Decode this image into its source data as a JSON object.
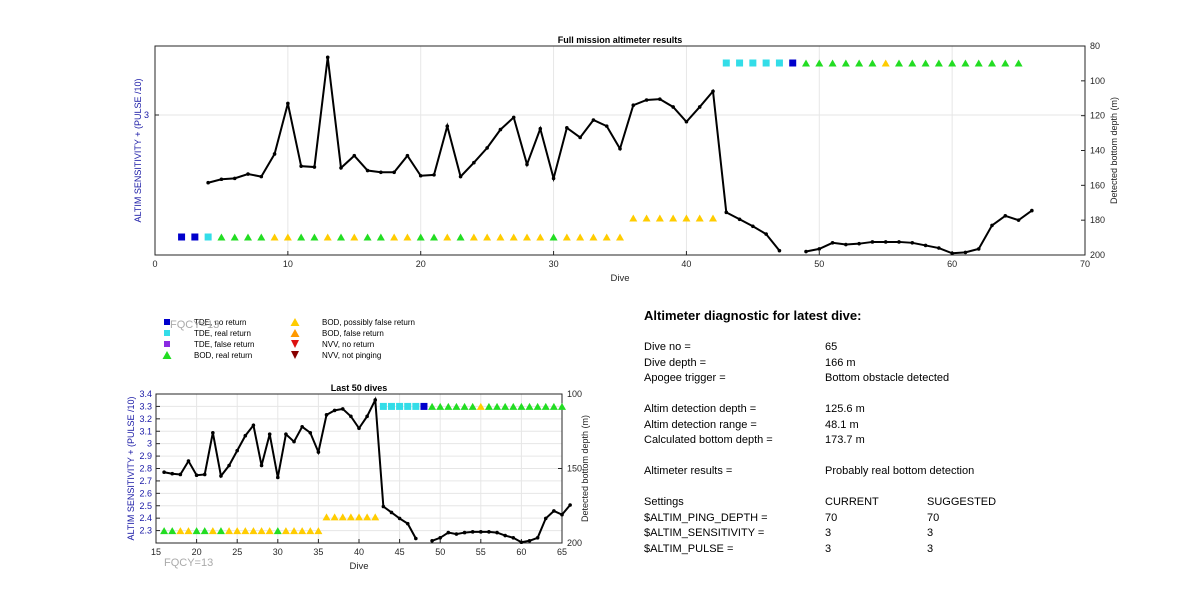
{
  "chart_data": [
    {
      "type": "line",
      "title": "Full mission altimeter results",
      "xlabel": "Dive",
      "ylabel_left": "ALTIM SENSITIVITY + (PULSE /10)",
      "ylabel_right": "Detected bottom depth (m)",
      "xlim": [
        0,
        70
      ],
      "xticks": [
        0,
        10,
        20,
        30,
        40,
        50,
        60,
        70
      ],
      "yticks_left": [
        3
      ],
      "ylim_right": [
        200,
        80
      ],
      "yticks_right": [
        80,
        100,
        120,
        140,
        160,
        180,
        200
      ],
      "grid": true,
      "series": [
        {
          "type": "line",
          "axis": "right",
          "color": "#000000",
          "points": [
            [
              4,
              158.5
            ],
            [
              5,
              156.5
            ],
            [
              6,
              156
            ],
            [
              7,
              153.5
            ],
            [
              8,
              155
            ],
            [
              9,
              142
            ],
            [
              10,
              113
            ],
            [
              11,
              149
            ],
            [
              12,
              149.5
            ],
            [
              13,
              86.5
            ],
            [
              14,
              150
            ],
            [
              15,
              143
            ],
            [
              16,
              151.5
            ],
            [
              17,
              152.5
            ],
            [
              18,
              152.5
            ],
            [
              19,
              143
            ],
            [
              20,
              154.5
            ],
            [
              21,
              154
            ],
            [
              22,
              126
            ],
            [
              23,
              155
            ],
            [
              24,
              147
            ],
            [
              25,
              138.5
            ],
            [
              26,
              128
            ],
            [
              27,
              121
            ],
            [
              28,
              148
            ],
            [
              29,
              127.5
            ],
            [
              30,
              156
            ],
            [
              31,
              127
            ],
            [
              32,
              132.5
            ],
            [
              33,
              122.5
            ],
            [
              34,
              126
            ],
            [
              35,
              139
            ],
            [
              36,
              114
            ],
            [
              37,
              111
            ],
            [
              38,
              110.5
            ],
            [
              39,
              115
            ],
            [
              40,
              123.5
            ],
            [
              41,
              115
            ],
            [
              42,
              106
            ],
            [
              43,
              175.5
            ],
            [
              44,
              179.5
            ],
            [
              45,
              183.5
            ],
            [
              46,
              188
            ],
            [
              47,
              197.5
            ],
            null,
            [
              49,
              198
            ],
            [
              50,
              196.5
            ],
            [
              51,
              193
            ],
            [
              52,
              194
            ],
            [
              53,
              193.5
            ],
            [
              54,
              192.5
            ],
            [
              55,
              192.5
            ],
            [
              56,
              192.5
            ],
            [
              57,
              193
            ],
            [
              58,
              194.5
            ],
            [
              59,
              196
            ],
            [
              60,
              199
            ],
            [
              61,
              198.5
            ],
            [
              62,
              196.5
            ],
            [
              63,
              183
            ],
            [
              64,
              177.5
            ],
            [
              65,
              180
            ],
            [
              66,
              174.5
            ]
          ]
        }
      ],
      "markers": {
        "axis_left_level": {
          "low": 2.3,
          "high": 3.3
        },
        "low_row": [
          {
            "dive": 2,
            "symbol": "tde-no-return"
          },
          {
            "dive": 3,
            "symbol": "tde-no-return"
          },
          {
            "dive": 4,
            "symbol": "tde-real-return"
          },
          {
            "dive": 5,
            "symbol": "bod-real-return"
          },
          {
            "dive": 6,
            "symbol": "bod-real-return"
          },
          {
            "dive": 7,
            "symbol": "bod-real-return"
          },
          {
            "dive": 8,
            "symbol": "bod-real-return"
          },
          {
            "dive": 9,
            "symbol": "bod-possibly-false"
          },
          {
            "dive": 10,
            "symbol": "bod-possibly-false"
          },
          {
            "dive": 11,
            "symbol": "bod-real-return"
          },
          {
            "dive": 12,
            "symbol": "bod-real-return"
          },
          {
            "dive": 13,
            "symbol": "bod-possibly-false"
          },
          {
            "dive": 14,
            "symbol": "bod-real-return"
          },
          {
            "dive": 15,
            "symbol": "bod-possibly-false"
          },
          {
            "dive": 16,
            "symbol": "bod-real-return"
          },
          {
            "dive": 17,
            "symbol": "bod-real-return"
          },
          {
            "dive": 18,
            "symbol": "bod-possibly-false"
          },
          {
            "dive": 19,
            "symbol": "bod-possibly-false"
          },
          {
            "dive": 20,
            "symbol": "bod-real-return"
          },
          {
            "dive": 21,
            "symbol": "bod-real-return"
          },
          {
            "dive": 22,
            "symbol": "bod-possibly-false"
          },
          {
            "dive": 23,
            "symbol": "bod-real-return"
          },
          {
            "dive": 24,
            "symbol": "bod-possibly-false"
          },
          {
            "dive": 25,
            "symbol": "bod-possibly-false"
          },
          {
            "dive": 26,
            "symbol": "bod-possibly-false"
          },
          {
            "dive": 27,
            "symbol": "bod-possibly-false"
          },
          {
            "dive": 28,
            "symbol": "bod-possibly-false"
          },
          {
            "dive": 29,
            "symbol": "bod-possibly-false"
          },
          {
            "dive": 30,
            "symbol": "bod-real-return"
          },
          {
            "dive": 31,
            "symbol": "bod-possibly-false"
          },
          {
            "dive": 32,
            "symbol": "bod-possibly-false"
          },
          {
            "dive": 33,
            "symbol": "bod-possibly-false"
          },
          {
            "dive": 34,
            "symbol": "bod-possibly-false"
          },
          {
            "dive": 35,
            "symbol": "bod-possibly-false"
          }
        ],
        "mid_row": [
          {
            "dive": 36,
            "symbol": "bod-possibly-false"
          },
          {
            "dive": 37,
            "symbol": "bod-possibly-false"
          },
          {
            "dive": 38,
            "symbol": "bod-possibly-false"
          },
          {
            "dive": 39,
            "symbol": "bod-possibly-false"
          },
          {
            "dive": 40,
            "symbol": "bod-possibly-false"
          },
          {
            "dive": 41,
            "symbol": "bod-possibly-false"
          },
          {
            "dive": 42,
            "symbol": "bod-possibly-false"
          }
        ],
        "high_row": [
          {
            "dive": 43,
            "symbol": "tde-real-return"
          },
          {
            "dive": 44,
            "symbol": "tde-real-return"
          },
          {
            "dive": 45,
            "symbol": "tde-real-return"
          },
          {
            "dive": 46,
            "symbol": "tde-real-return"
          },
          {
            "dive": 47,
            "symbol": "tde-real-return"
          },
          {
            "dive": 48,
            "symbol": "tde-no-return"
          },
          {
            "dive": 49,
            "symbol": "bod-real-return"
          },
          {
            "dive": 50,
            "symbol": "bod-real-return"
          },
          {
            "dive": 51,
            "symbol": "bod-real-return"
          },
          {
            "dive": 52,
            "symbol": "bod-real-return"
          },
          {
            "dive": 53,
            "symbol": "bod-real-return"
          },
          {
            "dive": 54,
            "symbol": "bod-real-return"
          },
          {
            "dive": 55,
            "symbol": "bod-possibly-false"
          },
          {
            "dive": 56,
            "symbol": "bod-real-return"
          },
          {
            "dive": 57,
            "symbol": "bod-real-return"
          },
          {
            "dive": 58,
            "symbol": "bod-real-return"
          },
          {
            "dive": 59,
            "symbol": "bod-real-return"
          },
          {
            "dive": 60,
            "symbol": "bod-real-return"
          },
          {
            "dive": 61,
            "symbol": "bod-real-return"
          },
          {
            "dive": 62,
            "symbol": "bod-real-return"
          },
          {
            "dive": 63,
            "symbol": "bod-real-return"
          },
          {
            "dive": 64,
            "symbol": "bod-real-return"
          },
          {
            "dive": 65,
            "symbol": "bod-real-return"
          }
        ]
      }
    },
    {
      "type": "line",
      "title": "Last 50 dives",
      "xlabel": "Dive",
      "ylabel_left": "ALTIM SENSITIVITY + (PULSE /10)",
      "ylabel_right": "Detected bottom depth (m)",
      "xlim": [
        15,
        65
      ],
      "xticks": [
        15,
        20,
        25,
        30,
        35,
        40,
        45,
        50,
        55,
        60,
        65
      ],
      "ylim_left": [
        2.2,
        3.4
      ],
      "yticks_left": [
        2.3,
        2.4,
        2.5,
        2.6,
        2.7,
        2.8,
        2.9,
        3,
        3.1,
        3.2,
        3.3,
        3.4
      ],
      "ylim_right": [
        200,
        100
      ],
      "yticks_right": [
        100,
        150,
        200
      ],
      "grid": true,
      "series": [
        {
          "type": "line",
          "axis": "right",
          "color": "#000000",
          "points": [
            [
              16,
              152.5
            ],
            [
              17,
              153.5
            ],
            [
              18,
              154
            ],
            [
              19,
              145
            ],
            [
              20,
              154.5
            ],
            [
              21,
              154
            ],
            [
              22,
              126
            ],
            [
              23,
              155
            ],
            [
              24,
              148
            ],
            [
              25,
              138
            ],
            [
              26,
              128
            ],
            [
              27,
              121
            ],
            [
              28,
              148
            ],
            [
              29,
              127
            ],
            [
              30,
              156
            ],
            [
              31,
              127
            ],
            [
              32,
              132
            ],
            [
              33,
              122
            ],
            [
              34,
              126
            ],
            [
              35,
              139
            ],
            [
              36,
              114
            ],
            [
              37,
              111
            ],
            [
              38,
              110
            ],
            [
              39,
              115
            ],
            [
              40,
              123
            ],
            [
              41,
              115
            ],
            [
              42,
              104
            ],
            [
              43,
              175.5
            ],
            [
              44,
              179.5
            ],
            [
              45,
              183.5
            ],
            [
              46,
              187
            ],
            [
              47,
              197
            ],
            null,
            [
              49,
              198.5
            ],
            [
              50,
              196.5
            ],
            [
              51,
              193
            ],
            [
              52,
              194
            ],
            [
              53,
              193
            ],
            [
              54,
              192.5
            ],
            [
              55,
              192.5
            ],
            [
              56,
              192.5
            ],
            [
              57,
              193
            ],
            [
              58,
              195
            ],
            [
              59,
              196.5
            ],
            [
              60,
              199.5
            ],
            [
              61,
              198.5
            ],
            [
              62,
              196.5
            ],
            [
              63,
              183.5
            ],
            [
              64,
              178.5
            ],
            [
              65,
              181
            ],
            [
              66,
              174.5
            ]
          ]
        }
      ]
    }
  ],
  "legend": {
    "items": [
      {
        "symbol": "tde-no-return",
        "label": "TDE, no return",
        "color": "#0000cc"
      },
      {
        "symbol": "tde-real-return",
        "label": "TDE, real return",
        "color": "#33dde8"
      },
      {
        "symbol": "tde-false-return",
        "label": "TDE, false return",
        "color": "#8a2be2"
      },
      {
        "symbol": "bod-real-return",
        "label": "BOD, real return",
        "color": "#22dd22"
      },
      {
        "symbol": "bod-possibly-false",
        "label": "BOD, possibly false return",
        "color": "#ffcc00"
      },
      {
        "symbol": "bod-false-return",
        "label": "BOD, false return",
        "color": "#ff9900"
      },
      {
        "symbol": "nvv-no-return",
        "label": "NVV, no return",
        "color": "#dd1111"
      },
      {
        "symbol": "nvv-not-pinging",
        "label": "NVV, not pinging",
        "color": "#880000"
      }
    ]
  },
  "watermarks": {
    "top": "FQCY=13",
    "bottom": "FQCY=13"
  },
  "diagnostic": {
    "title": "Altimeter diagnostic for latest dive:",
    "rows": [
      {
        "label": "Dive no =",
        "value": "65"
      },
      {
        "label": "Dive depth =",
        "value": "166 m"
      },
      {
        "label": "Apogee trigger =",
        "value": "Bottom obstacle detected"
      },
      {
        "label": "Altim detection depth =",
        "value": "125.6 m"
      },
      {
        "label": "Altim detection range =",
        "value": "48.1 m"
      },
      {
        "label": "Calculated bottom depth =",
        "value": "173.7 m"
      },
      {
        "label": "Altimeter results =",
        "value": "Probably real bottom detection"
      }
    ],
    "settings": {
      "header": {
        "label": "Settings",
        "current": "CURRENT",
        "suggested": "SUGGESTED"
      },
      "rows": [
        {
          "label": "$ALTIM_PING_DEPTH =",
          "current": "70",
          "suggested": "70"
        },
        {
          "label": "$ALTIM_SENSITIVITY =",
          "current": "3",
          "suggested": "3"
        },
        {
          "label": "$ALTIM_PULSE =",
          "current": "3",
          "suggested": "3"
        }
      ]
    }
  }
}
